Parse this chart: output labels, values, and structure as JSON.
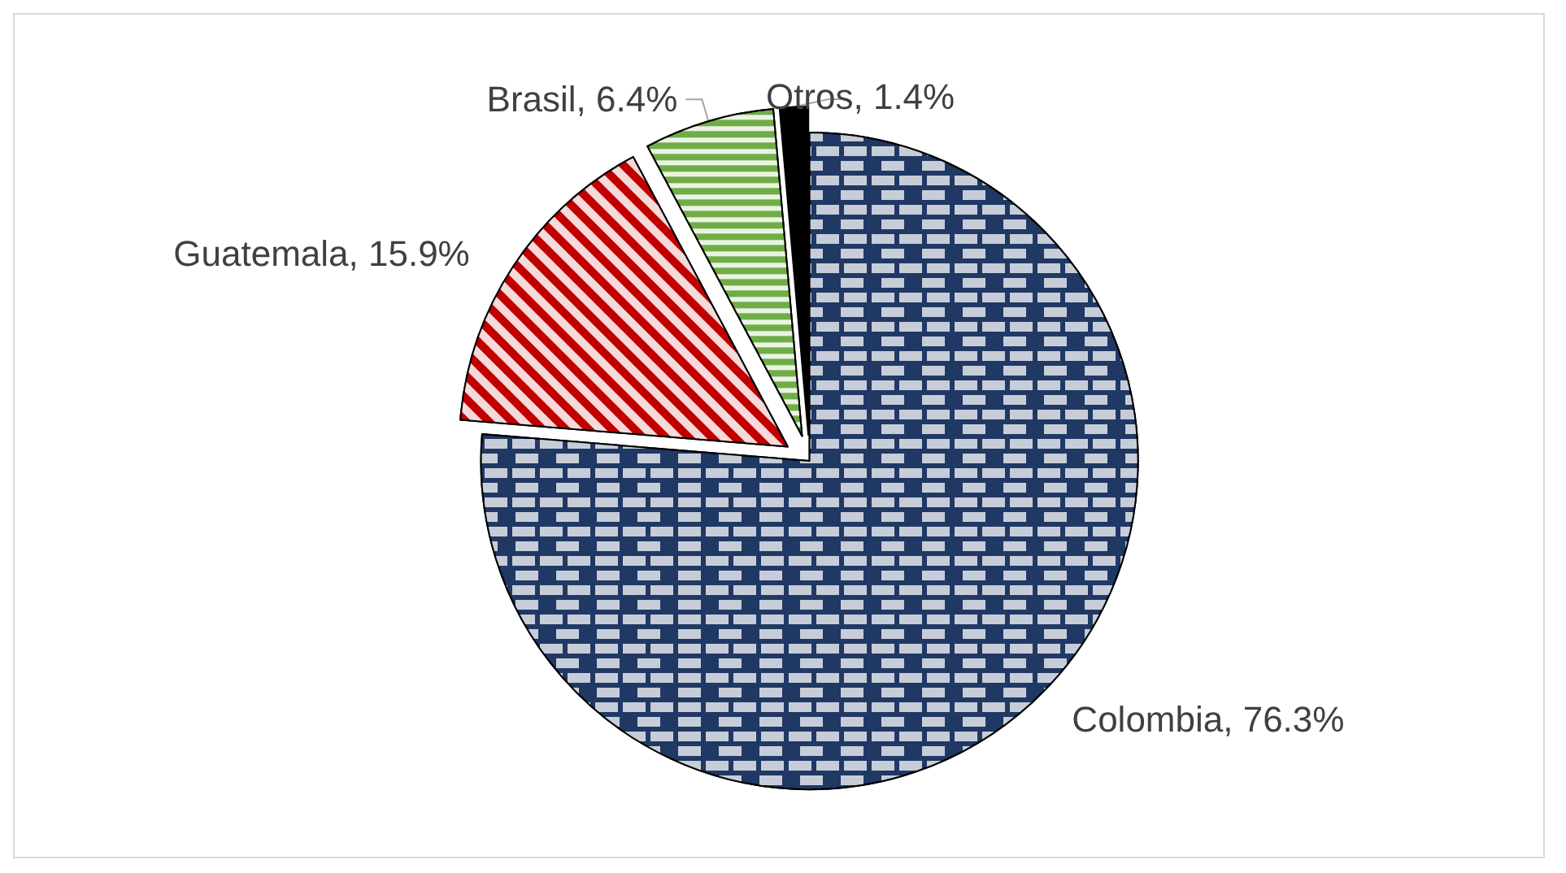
{
  "chart_data": {
    "type": "pie",
    "categories": [
      "Colombia",
      "Guatemala",
      "Brasil",
      "Otros"
    ],
    "values": [
      76.3,
      15.9,
      6.4,
      1.4
    ],
    "colors": [
      "#203864",
      "#c00000",
      "#70ad47",
      "#000000"
    ],
    "value_labels": [
      "76.3%",
      "15.9%",
      "6.4%",
      "1.4%"
    ],
    "legend": false
  }
}
